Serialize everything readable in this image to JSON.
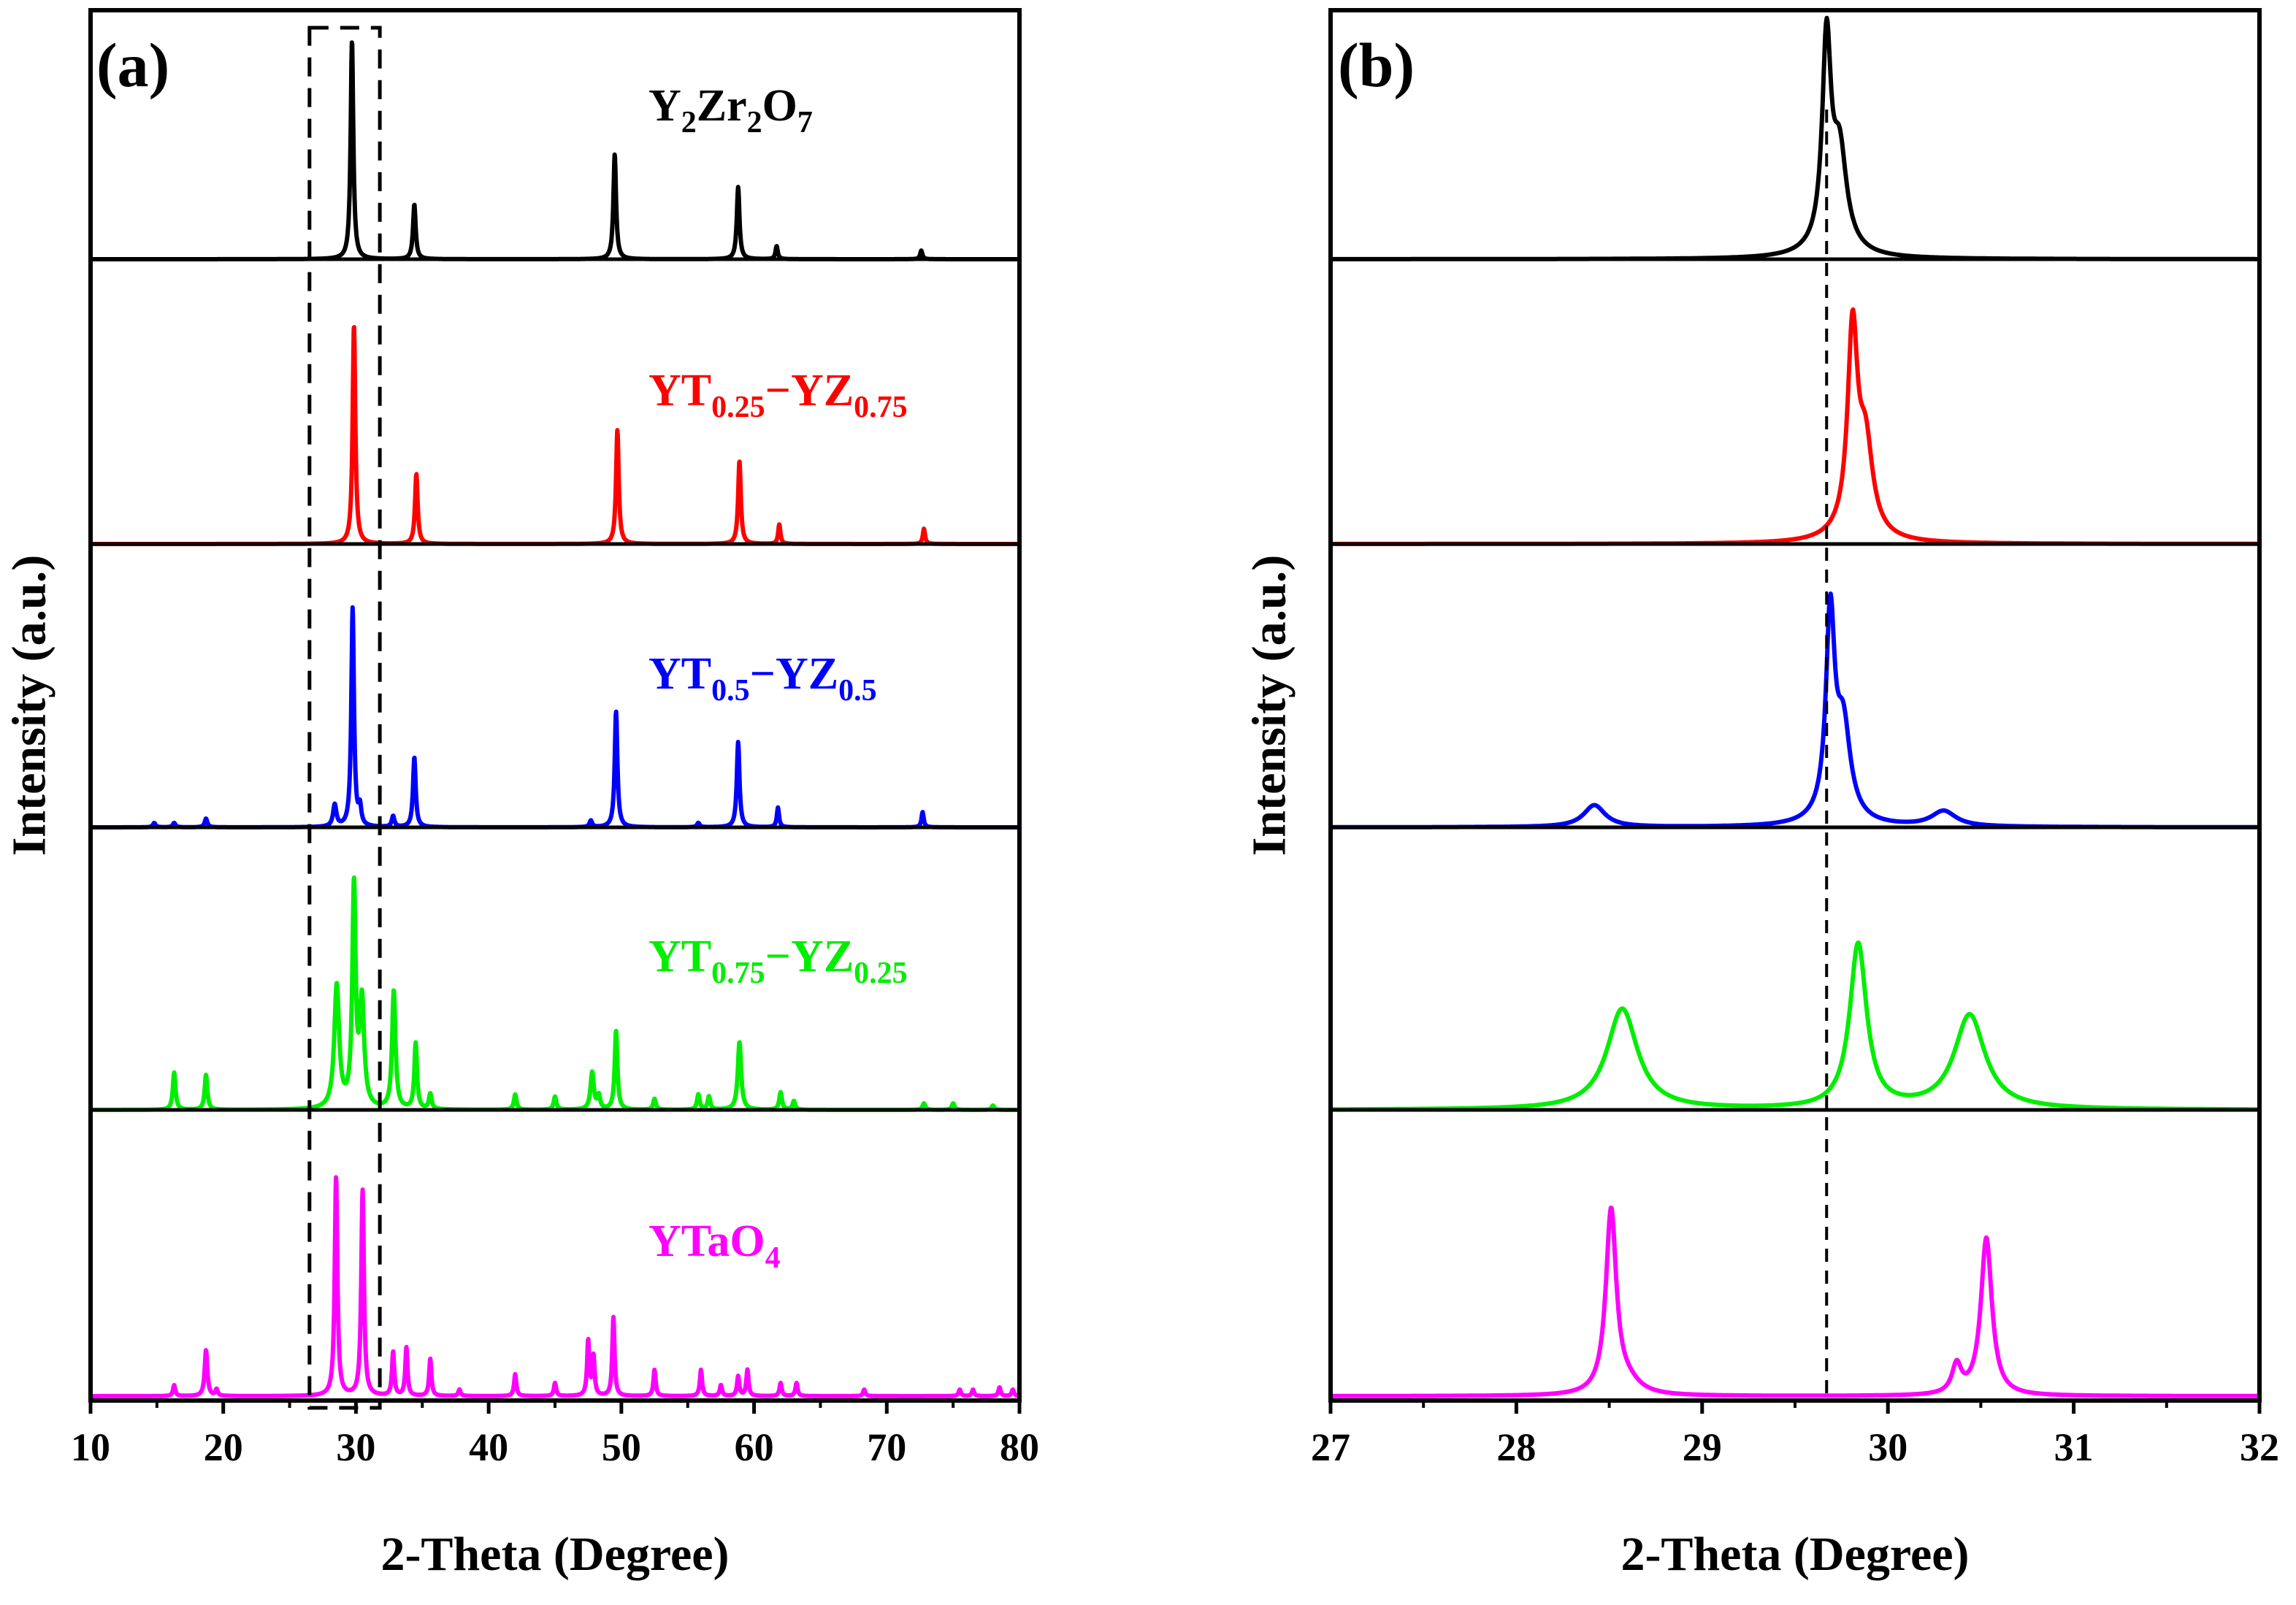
{
  "chart_data": [
    {
      "panel_label": "(a)",
      "type": "line",
      "xlabel": "2-Theta (Degree)",
      "ylabel": "Intensity (a.u.)",
      "xlim": [
        10,
        80
      ],
      "xticks": [
        10,
        20,
        30,
        40,
        50,
        60,
        70,
        80
      ],
      "highlight_box_x": [
        26.5,
        31.8
      ],
      "series": [
        {
          "name": "Y2Zr2O7",
          "label_parts": [
            {
              "t": "Y"
            },
            {
              "t": "2",
              "sub": true
            },
            {
              "t": "Zr"
            },
            {
              "t": "2",
              "sub": true
            },
            {
              "t": "O"
            },
            {
              "t": "7",
              "sub": true
            }
          ],
          "color": "#000000",
          "peaks": [
            [
              29.7,
              1.0,
              0.12
            ],
            [
              34.4,
              0.25,
              0.12
            ],
            [
              49.5,
              0.48,
              0.12
            ],
            [
              58.8,
              0.33,
              0.12
            ],
            [
              61.7,
              0.06,
              0.1
            ],
            [
              72.6,
              0.04,
              0.1
            ]
          ]
        },
        {
          "name": "YT0.25-YZ0.75",
          "label_parts": [
            {
              "t": "YT"
            },
            {
              "t": "0.25",
              "sub": true
            },
            {
              "t": "−YZ"
            },
            {
              "t": "0.75",
              "sub": true
            }
          ],
          "color": "#ff0000",
          "peaks": [
            [
              29.85,
              1.0,
              0.12
            ],
            [
              34.55,
              0.32,
              0.12
            ],
            [
              49.7,
              0.52,
              0.12
            ],
            [
              58.9,
              0.38,
              0.12
            ],
            [
              61.9,
              0.09,
              0.1
            ],
            [
              72.8,
              0.07,
              0.1
            ]
          ]
        },
        {
          "name": "YT0.5-YZ0.5",
          "label_parts": [
            {
              "t": "YT"
            },
            {
              "t": "0.5",
              "sub": true
            },
            {
              "t": "−YZ"
            },
            {
              "t": "0.5",
              "sub": true
            }
          ],
          "color": "#0000ff",
          "peaks": [
            [
              14.8,
              0.02,
              0.12
            ],
            [
              16.3,
              0.02,
              0.12
            ],
            [
              18.7,
              0.04,
              0.12
            ],
            [
              28.4,
              0.1,
              0.15
            ],
            [
              29.75,
              1.0,
              0.12
            ],
            [
              30.3,
              0.08,
              0.12
            ],
            [
              32.8,
              0.05,
              0.12
            ],
            [
              34.4,
              0.32,
              0.12
            ],
            [
              47.7,
              0.03,
              0.12
            ],
            [
              49.6,
              0.53,
              0.12
            ],
            [
              55.8,
              0.02,
              0.12
            ],
            [
              58.8,
              0.39,
              0.12
            ],
            [
              61.8,
              0.09,
              0.1
            ],
            [
              72.7,
              0.07,
              0.1
            ]
          ]
        },
        {
          "name": "YT0.75-YZ0.25",
          "label_parts": [
            {
              "t": "YT"
            },
            {
              "t": "0.75",
              "sub": true
            },
            {
              "t": "−YZ"
            },
            {
              "t": "0.25",
              "sub": true
            }
          ],
          "color": "#00ee00",
          "peaks": [
            [
              16.3,
              0.17,
              0.12
            ],
            [
              18.7,
              0.16,
              0.12
            ],
            [
              28.55,
              0.56,
              0.22
            ],
            [
              29.85,
              1.0,
              0.15
            ],
            [
              30.45,
              0.48,
              0.2
            ],
            [
              32.85,
              0.54,
              0.15
            ],
            [
              34.5,
              0.3,
              0.12
            ],
            [
              35.6,
              0.07,
              0.12
            ],
            [
              42.0,
              0.07,
              0.12
            ],
            [
              45.0,
              0.06,
              0.12
            ],
            [
              47.8,
              0.17,
              0.15
            ],
            [
              48.3,
              0.06,
              0.12
            ],
            [
              49.6,
              0.36,
              0.12
            ],
            [
              52.5,
              0.05,
              0.12
            ],
            [
              55.8,
              0.07,
              0.12
            ],
            [
              56.6,
              0.06,
              0.12
            ],
            [
              58.9,
              0.31,
              0.15
            ],
            [
              62.0,
              0.08,
              0.12
            ],
            [
              63.0,
              0.04,
              0.12
            ],
            [
              72.8,
              0.03,
              0.12
            ],
            [
              75.0,
              0.03,
              0.12
            ],
            [
              78.0,
              0.02,
              0.12
            ]
          ]
        },
        {
          "name": "YTaO4",
          "label_parts": [
            {
              "t": "YTaO"
            },
            {
              "t": "4",
              "sub": true
            }
          ],
          "color": "#ff00ff",
          "peaks": [
            [
              16.3,
              0.05,
              0.1
            ],
            [
              18.7,
              0.21,
              0.12
            ],
            [
              19.5,
              0.03,
              0.1
            ],
            [
              28.5,
              1.0,
              0.12
            ],
            [
              30.5,
              0.94,
              0.12
            ],
            [
              32.8,
              0.2,
              0.1
            ],
            [
              33.8,
              0.22,
              0.1
            ],
            [
              35.6,
              0.17,
              0.1
            ],
            [
              37.8,
              0.03,
              0.1
            ],
            [
              42.0,
              0.1,
              0.1
            ],
            [
              45.0,
              0.06,
              0.1
            ],
            [
              47.5,
              0.25,
              0.1
            ],
            [
              47.9,
              0.18,
              0.1
            ],
            [
              49.4,
              0.36,
              0.1
            ],
            [
              52.5,
              0.12,
              0.1
            ],
            [
              56.0,
              0.12,
              0.1
            ],
            [
              57.5,
              0.05,
              0.1
            ],
            [
              58.8,
              0.09,
              0.1
            ],
            [
              59.5,
              0.12,
              0.1
            ],
            [
              62.0,
              0.06,
              0.1
            ],
            [
              63.2,
              0.06,
              0.1
            ],
            [
              68.3,
              0.03,
              0.1
            ],
            [
              75.5,
              0.03,
              0.1
            ],
            [
              76.5,
              0.03,
              0.1
            ],
            [
              78.5,
              0.04,
              0.1
            ],
            [
              79.5,
              0.03,
              0.1
            ]
          ]
        }
      ]
    },
    {
      "panel_label": "(b)",
      "type": "line",
      "xlabel": "2-Theta (Degree)",
      "ylabel": "Intensity (a.u.)",
      "xlim": [
        27,
        32
      ],
      "xticks": [
        27,
        28,
        29,
        30,
        31,
        32
      ],
      "reference_line_x": 29.67,
      "series": [
        {
          "name": "Y2Zr2O7",
          "color": "#000000",
          "peaks": [
            [
              29.67,
              0.92,
              0.028
            ],
            [
              29.74,
              0.42,
              0.045
            ],
            [
              29.7,
              0.06,
              0.13
            ]
          ]
        },
        {
          "name": "YT0.25-YZ0.75",
          "color": "#ff0000",
          "peaks": [
            [
              29.81,
              0.9,
              0.032
            ],
            [
              29.88,
              0.38,
              0.045
            ],
            [
              29.83,
              0.06,
              0.13
            ]
          ]
        },
        {
          "name": "YT0.5-YZ0.5",
          "color": "#0000ff",
          "peaks": [
            [
              28.42,
              0.1,
              0.07
            ],
            [
              29.69,
              0.9,
              0.028
            ],
            [
              29.76,
              0.4,
              0.045
            ],
            [
              29.72,
              0.05,
              0.12
            ],
            [
              30.3,
              0.07,
              0.08
            ]
          ]
        },
        {
          "name": "YT0.75-YZ0.25",
          "color": "#00ee00",
          "peaks": [
            [
              28.57,
              0.46,
              0.1
            ],
            [
              29.84,
              0.75,
              0.055
            ],
            [
              30.44,
              0.43,
              0.1
            ]
          ]
        },
        {
          "name": "YTaO4",
          "color": "#ff00ff",
          "peaks": [
            [
              28.51,
              0.84,
              0.034
            ],
            [
              28.6,
              0.05,
              0.08
            ],
            [
              30.37,
              0.13,
              0.03
            ],
            [
              30.53,
              0.72,
              0.036
            ]
          ]
        }
      ]
    }
  ]
}
